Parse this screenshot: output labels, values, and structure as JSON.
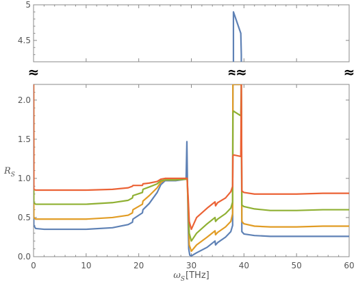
{
  "chart_data": {
    "type": "line",
    "title": "",
    "xlabel": {
      "symbol": "ω",
      "subscript": "S",
      "unit": "[THz]"
    },
    "ylabel": {
      "symbol": "R",
      "subscript": "S"
    },
    "xlim": [
      0,
      60
    ],
    "ylim_lower": [
      0,
      2.2
    ],
    "ylim_upper": [
      4.2,
      5.0
    ],
    "axis_break": true,
    "grid": false,
    "legend": "none",
    "x_ticks": [
      0,
      10,
      20,
      30,
      40,
      50,
      60
    ],
    "x_tick_labels": [
      "0",
      "10",
      "20",
      "30",
      "40",
      "50",
      "60"
    ],
    "y_ticks_lower": [
      0.0,
      0.5,
      1.0,
      1.5,
      2.0
    ],
    "y_tick_labels_lower": [
      "0.0",
      "0.5",
      "1.0",
      "1.5",
      "2.0"
    ],
    "y_ticks_upper": [
      4.5,
      5.0
    ],
    "y_tick_labels_upper": [
      "4.5",
      "5"
    ],
    "break_mark": "≈",
    "break_positions_x": [
      0,
      37.9,
      39.5,
      60
    ],
    "series": [
      {
        "color": "#5e81b5",
        "x": [
          0,
          0.05,
          0.4,
          2,
          5,
          10,
          15,
          18,
          18.8,
          18.9,
          20.7,
          20.8,
          22,
          23.5,
          24.2,
          25,
          27,
          29,
          29.15,
          29.25,
          29.4,
          29.5,
          29.7,
          30,
          31,
          33,
          34.5,
          34.6,
          35,
          36.5,
          37.5,
          37.85,
          37.9,
          38.0,
          39.4,
          39.5,
          39.6,
          40,
          42,
          45,
          50,
          55,
          60
        ],
        "y": [
          2.2,
          0.4,
          0.36,
          0.35,
          0.35,
          0.35,
          0.37,
          0.41,
          0.44,
          0.48,
          0.56,
          0.6,
          0.68,
          0.82,
          0.92,
          0.97,
          0.97,
          0.99,
          1.47,
          1.0,
          0.4,
          0.1,
          0.02,
          0.01,
          0.05,
          0.12,
          0.2,
          0.15,
          0.18,
          0.25,
          0.32,
          0.4,
          2.2,
          4.9,
          4.6,
          4.3,
          0.32,
          0.29,
          0.27,
          0.26,
          0.26,
          0.26,
          0.26
        ]
      },
      {
        "color": "#e19c24",
        "x": [
          0,
          0.05,
          0.4,
          2,
          5,
          10,
          15,
          18,
          18.8,
          18.9,
          20.7,
          20.8,
          22,
          23.5,
          24.2,
          25,
          27,
          29,
          29.2,
          29.4,
          29.6,
          30,
          31,
          33,
          34.5,
          34.6,
          35,
          36.5,
          37.5,
          37.85,
          37.9,
          39.5,
          39.6,
          40,
          42,
          45,
          50,
          55,
          60
        ],
        "y": [
          2.2,
          0.5,
          0.48,
          0.48,
          0.48,
          0.48,
          0.5,
          0.53,
          0.56,
          0.6,
          0.67,
          0.71,
          0.78,
          0.88,
          0.95,
          0.98,
          0.98,
          0.99,
          1.0,
          0.6,
          0.15,
          0.07,
          0.15,
          0.25,
          0.33,
          0.28,
          0.31,
          0.38,
          0.45,
          0.55,
          2.2,
          2.2,
          0.45,
          0.42,
          0.39,
          0.38,
          0.38,
          0.39,
          0.39
        ]
      },
      {
        "color": "#8fb032",
        "x": [
          0,
          0.05,
          0.4,
          2,
          5,
          10,
          15,
          18,
          18.8,
          18.9,
          20.7,
          20.8,
          22,
          23.5,
          24.2,
          25,
          27,
          29,
          29.2,
          29.4,
          29.6,
          30,
          31,
          33,
          34.5,
          34.6,
          35,
          36.5,
          37.5,
          37.85,
          37.9,
          38.0,
          39.4,
          39.5,
          39.6,
          40,
          42,
          45,
          50,
          55,
          60
        ],
        "y": [
          2.2,
          0.69,
          0.67,
          0.67,
          0.67,
          0.67,
          0.69,
          0.72,
          0.75,
          0.78,
          0.82,
          0.86,
          0.89,
          0.93,
          0.97,
          0.98,
          0.98,
          0.99,
          1.0,
          0.7,
          0.3,
          0.2,
          0.3,
          0.42,
          0.5,
          0.45,
          0.48,
          0.55,
          0.62,
          0.7,
          1.83,
          1.86,
          1.8,
          2.2,
          0.66,
          0.64,
          0.61,
          0.59,
          0.59,
          0.6,
          0.6
        ]
      },
      {
        "color": "#eb6235",
        "x": [
          0,
          0.05,
          0.4,
          2,
          5,
          10,
          15,
          18,
          18.8,
          18.9,
          20.7,
          20.8,
          22,
          23.5,
          24.2,
          25,
          27,
          29,
          29.2,
          29.4,
          29.6,
          30,
          31,
          33,
          34.5,
          34.6,
          35,
          36.5,
          37.5,
          37.85,
          37.9,
          38.0,
          39.4,
          39.5,
          39.6,
          40,
          42,
          45,
          50,
          55,
          60
        ],
        "y": [
          2.2,
          0.86,
          0.85,
          0.85,
          0.85,
          0.85,
          0.86,
          0.88,
          0.9,
          0.91,
          0.91,
          0.93,
          0.94,
          0.96,
          0.99,
          1.0,
          1.0,
          1.0,
          1.0,
          0.75,
          0.45,
          0.35,
          0.5,
          0.62,
          0.7,
          0.65,
          0.69,
          0.75,
          0.83,
          0.9,
          1.28,
          1.3,
          1.28,
          2.2,
          0.84,
          0.82,
          0.8,
          0.8,
          0.8,
          0.81,
          0.81
        ]
      }
    ]
  }
}
